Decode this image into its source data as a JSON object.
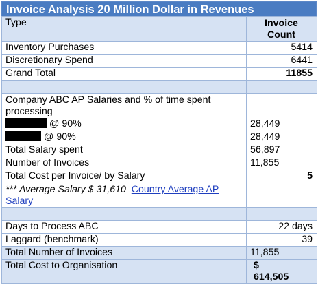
{
  "title": "Invoice Analysis 20 Million Dollar in Revenues",
  "header": {
    "type_label": "Type",
    "count_label_line1": "Invoice",
    "count_label_line2": "Count"
  },
  "invoice_rows": [
    {
      "label": "Inventory Purchases",
      "value": "5414"
    },
    {
      "label": "Discretionary Spend",
      "value": "6441"
    }
  ],
  "grand_total": {
    "label": "Grand Total",
    "value": "11855"
  },
  "salaries": {
    "heading": "Company ABC AP Salaries and % of time spent processing",
    "rows": [
      {
        "pct": "@ 90%",
        "value": "28,449"
      },
      {
        "pct": "@ 90%",
        "value": "28,449"
      }
    ],
    "total_salary": {
      "label": "Total Salary spent",
      "value": "56,897"
    },
    "num_invoices": {
      "label": "Number of Invoices",
      "value": "11,855"
    },
    "cost_per_invoice": {
      "label": "Total Cost per Invoice/ by Salary",
      "value": "5"
    },
    "avg_salary_note": "*** Average Salary $ 31,610",
    "country_link": "Country Average AP Salary"
  },
  "process": {
    "days": {
      "label": "Days to Process ABC",
      "value": "22 days"
    },
    "laggard": {
      "label": "Laggard (benchmark)",
      "value": "39"
    },
    "total_invoices": {
      "label": "Total Number of Invoices",
      "value": "11,855"
    },
    "total_cost": {
      "label": "Total Cost to Organisation",
      "value_line1": "$",
      "value_line2": "614,505"
    }
  },
  "colors": {
    "title_bg": "#4A7CC2",
    "row_blue": "#D6E2F3",
    "border": "#9EB6DA",
    "link": "#1F3FBF"
  }
}
